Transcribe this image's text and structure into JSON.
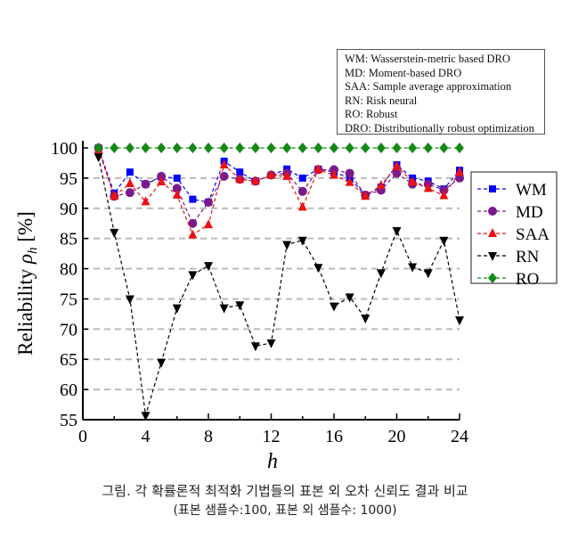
{
  "chart_data": {
    "type": "line",
    "xlabel": "h",
    "ylabel": "Reliability ρ_h [%]",
    "ylabel_main": "Reliability ",
    "ylabel_rho": "ρ",
    "ylabel_sub": "h",
    "ylabel_unit": " [%]",
    "xlim": [
      0,
      24
    ],
    "ylim": [
      55,
      100
    ],
    "xticks": [
      0,
      4,
      8,
      12,
      16,
      20,
      24
    ],
    "yticks": [
      55,
      60,
      65,
      70,
      75,
      80,
      85,
      90,
      95,
      100
    ],
    "grid": "horizontal dashed",
    "legend_placement": "right",
    "x": [
      1,
      2,
      3,
      4,
      5,
      6,
      7,
      8,
      9,
      10,
      11,
      12,
      13,
      14,
      15,
      16,
      17,
      18,
      19,
      20,
      21,
      22,
      23,
      24
    ],
    "series": [
      {
        "name": "WM",
        "color": "#0000ff",
        "marker": "square",
        "values": [
          100,
          92.5,
          96,
          94,
          95.2,
          95,
          91.5,
          91,
          97.8,
          96,
          94.5,
          95.5,
          96.5,
          95,
          96.5,
          96,
          95,
          92.2,
          93.5,
          97.2,
          95,
          94.5,
          93.2,
          96.3
        ]
      },
      {
        "name": "MD",
        "color": "#7a1a8c",
        "marker": "circle",
        "values": [
          100,
          92,
          92.6,
          94,
          95.3,
          93.3,
          87.5,
          91,
          95.3,
          94.8,
          94.5,
          95.5,
          95.8,
          92.8,
          96.4,
          96.4,
          95.8,
          92.2,
          93,
          95.8,
          94,
          94,
          93,
          95
        ]
      },
      {
        "name": "SAA",
        "color": "#ee1111",
        "marker": "triangle-up",
        "values": [
          99.7,
          92,
          94.1,
          91.1,
          94.4,
          92.2,
          85.6,
          87.3,
          97.2,
          94.8,
          94.5,
          95.5,
          95.3,
          90.2,
          96.4,
          95.5,
          94.3,
          92,
          93.8,
          97,
          94.4,
          93.3,
          92.1,
          96
        ]
      },
      {
        "name": "RN",
        "color": "#000000",
        "marker": "triangle-down",
        "values": [
          98.5,
          86,
          75,
          55.7,
          64.5,
          73.5,
          79,
          80.5,
          73.5,
          74,
          67.2,
          67.7,
          84,
          84.7,
          80.2,
          73.8,
          75.3,
          71.8,
          79.3,
          86.3,
          80.3,
          79.3,
          84.7,
          71.5
        ]
      },
      {
        "name": "RO",
        "color": "#138a13",
        "marker": "diamond",
        "values": [
          100,
          100,
          100,
          100,
          100,
          100,
          100,
          100,
          100,
          100,
          100,
          100,
          100,
          100,
          100,
          100,
          100,
          100,
          100,
          100,
          100,
          100,
          100,
          100
        ]
      }
    ],
    "annotation_lines": [
      "WM: Wasserstein-metric based DRO",
      "MD: Moment-based DRO",
      "SAA: Sample  average approximation",
      "RN: Risk neural",
      "RO: Robust",
      "DRO: Distributionally  robust optimization"
    ]
  },
  "caption": {
    "line1": "그림. 각 확률론적 최적화 기법들의 표본 외 오차 신뢰도 결과 비교",
    "line2": "(표본 샘플수:100, 표본 외 샘플수: 1000)"
  }
}
